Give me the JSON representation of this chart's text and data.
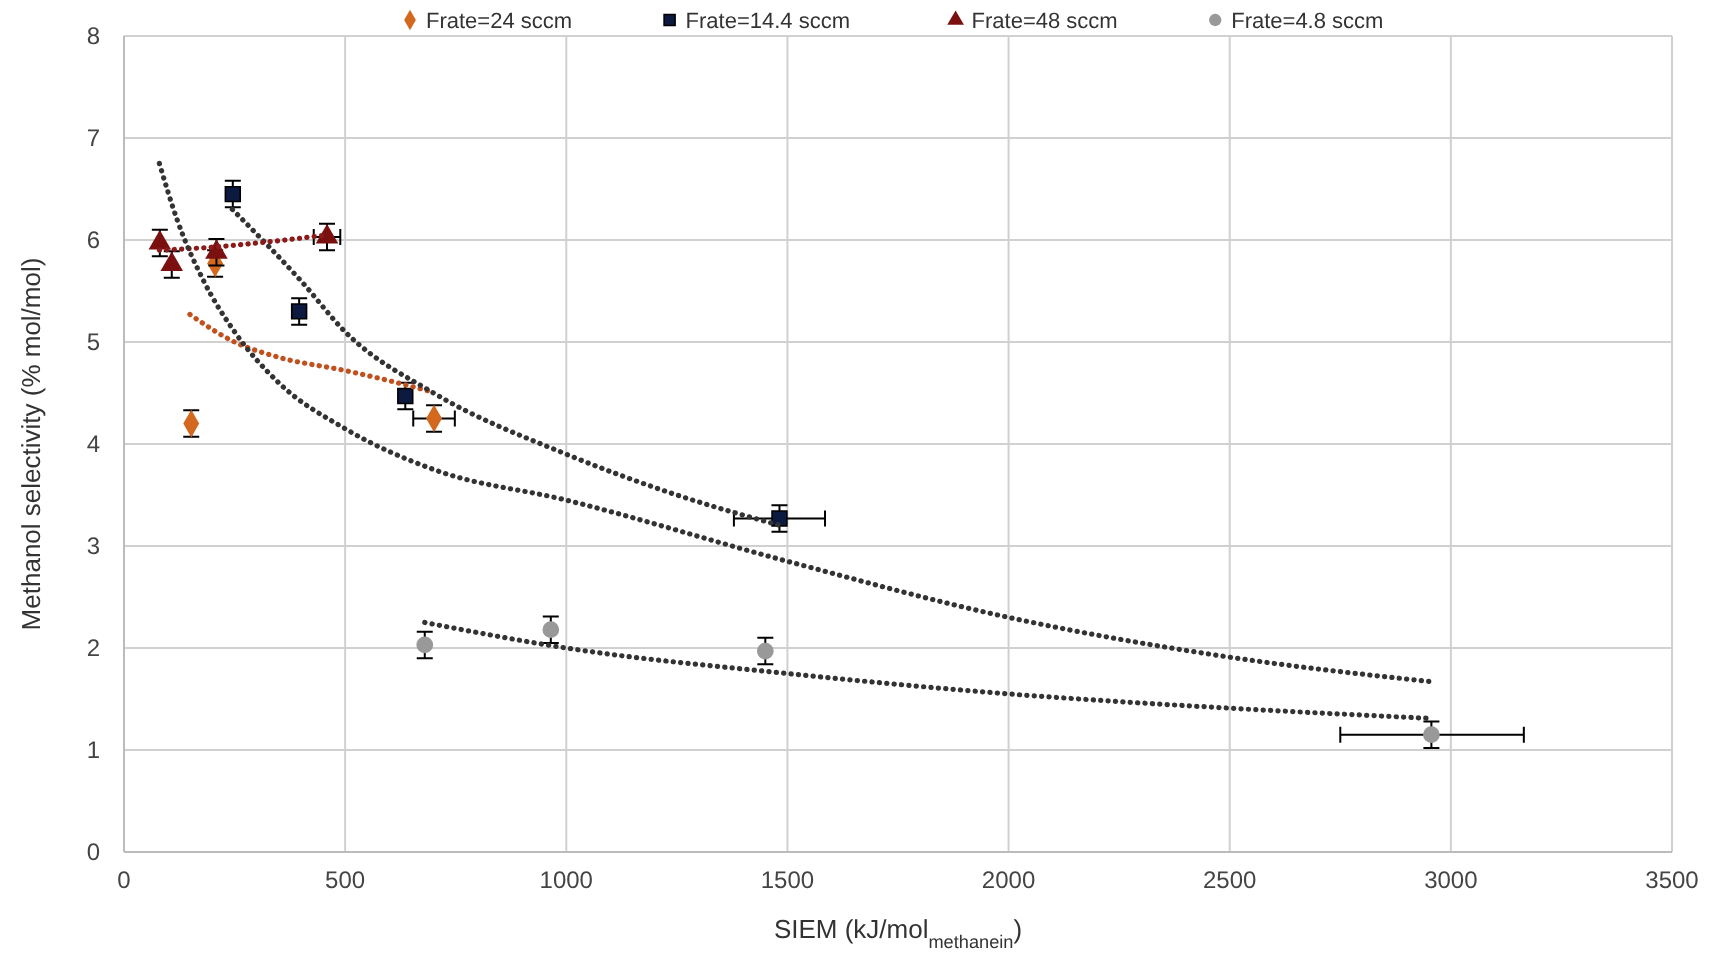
{
  "chart_data": {
    "type": "scatter",
    "xlabel": "SIEM (kJ/mol$_{methanein}$)",
    "ylabel": "Methanol selectivity (% mol/mol)",
    "xlim": [
      0,
      3500
    ],
    "xticks": [
      0,
      500,
      1000,
      1500,
      2000,
      2500,
      3000,
      3500
    ],
    "ylim": [
      0,
      8
    ],
    "yticks": [
      0,
      1,
      2,
      3,
      4,
      5,
      6,
      7,
      8
    ],
    "grid": true,
    "legend": "top",
    "series": [
      {
        "name": "Frate=24 sccm",
        "color": "#d2691e",
        "marker": "diamond",
        "x": [
          152,
          206,
          701
        ],
        "values": [
          4.2,
          5.77,
          4.25
        ],
        "errors": [
          0.13,
          0.13,
          0.13
        ],
        "xerrors": [
          null,
          null,
          47
        ]
      },
      {
        "name": "Frate=14.4 sccm",
        "color": "#0d1a40",
        "marker": "square",
        "x": [
          246,
          396,
          636,
          1482
        ],
        "values": [
          6.45,
          5.3,
          4.47,
          3.27
        ],
        "errors": [
          0.13,
          0.13,
          0.13,
          0.13
        ],
        "xerrors": [
          null,
          null,
          null,
          103
        ]
      },
      {
        "name": "Frate=48 sccm",
        "color": "#7b1010",
        "marker": "triangle",
        "x": [
          81,
          108,
          209,
          459
        ],
        "values": [
          5.97,
          5.76,
          5.88,
          6.03
        ],
        "errors": [
          0.13,
          0.13,
          0.13,
          0.13
        ],
        "xerrors": [
          null,
          null,
          null,
          30
        ]
      },
      {
        "name": "Frate=4.8 sccm",
        "color": "#999999",
        "marker": "circle",
        "x": [
          680,
          965,
          1450,
          2956
        ],
        "values": [
          2.03,
          2.18,
          1.97,
          1.15
        ],
        "errors": [
          0.13,
          0.13,
          0.13,
          0.13
        ],
        "xerrors": [
          null,
          null,
          null,
          [
            2750,
            3165
          ]
        ]
      },
      {
        "type": "line",
        "color": "#c0501e",
        "line_style": "dotted",
        "marker": "none",
        "x": [
          149,
          250,
          350,
          500,
          600,
          689
        ],
        "values": [
          5.27,
          5.0,
          4.85,
          4.72,
          4.62,
          4.52
        ]
      },
      {
        "type": "line",
        "color": "#333333",
        "line_style": "dotted",
        "marker": "none",
        "x": [
          245,
          400,
          500,
          700,
          1000,
          1250,
          1485
        ],
        "values": [
          6.3,
          5.6,
          5.1,
          4.5,
          3.9,
          3.5,
          3.2
        ]
      },
      {
        "type": "line",
        "color": "#8b1a1a",
        "line_style": "dotted",
        "marker": "none",
        "x": [
          80,
          200,
          300,
          460
        ],
        "values": [
          5.9,
          5.93,
          5.97,
          6.05
        ]
      },
      {
        "type": "line",
        "color": "#333333",
        "line_style": "dotted",
        "marker": "none",
        "x": [
          680,
          1000,
          1500,
          2000,
          2500,
          2955
        ],
        "values": [
          2.25,
          2.0,
          1.75,
          1.55,
          1.41,
          1.31
        ]
      },
      {
        "type": "line",
        "color": "#333333",
        "line_style": "dotted",
        "marker": "none",
        "x": [
          80,
          120,
          180,
          250,
          350,
          500,
          700,
          1000,
          1500,
          2000,
          2500,
          2955
        ],
        "values": [
          6.75,
          6.2,
          5.6,
          5.1,
          4.6,
          4.15,
          3.75,
          3.45,
          2.85,
          2.3,
          1.91,
          1.67
        ]
      }
    ]
  }
}
